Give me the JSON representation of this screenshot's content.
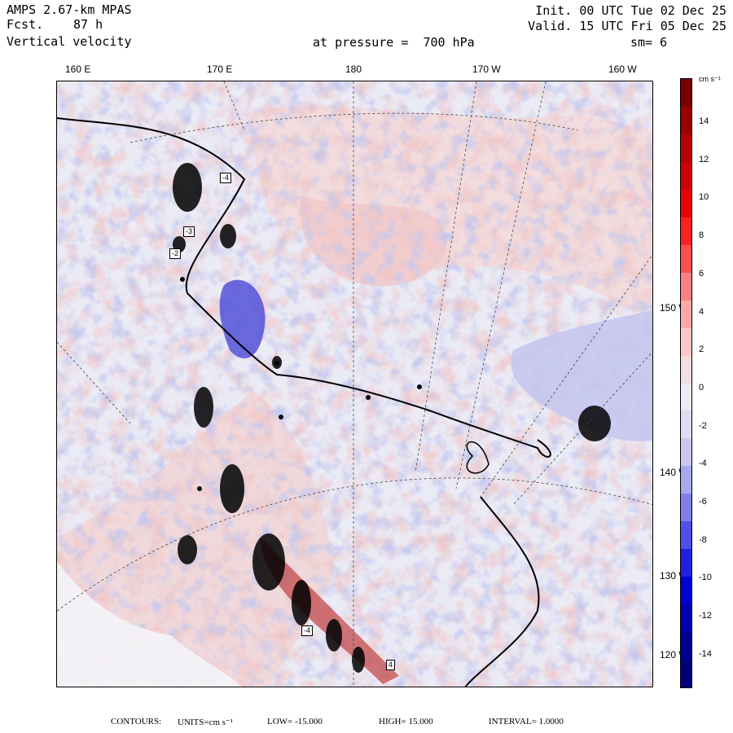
{
  "header": {
    "model": "AMPS 2.67-km MPAS",
    "fcst_label": "Fcst.",
    "fcst_value": "87 h",
    "field": "Vertical velocity",
    "init": "Init. 00 UTC Tue 02 Dec 25",
    "valid": "Valid. 15 UTC Fri 05 Dec 25",
    "pressure": "at pressure =  700 hPa",
    "smooth": "sm= 6"
  },
  "longitudes": [
    "160 E",
    "170 E",
    "180",
    "170 W",
    "160 W"
  ],
  "latitudes": [
    "150 W",
    "140 W",
    "130 W",
    "120 W"
  ],
  "colorbar": {
    "units": "cm s⁻¹",
    "labels": [
      "14",
      "12",
      "10",
      "8",
      "6",
      "4",
      "2",
      "0",
      "-2",
      "-4",
      "-6",
      "-8",
      "-10",
      "-12",
      "-14"
    ],
    "colors": [
      "#7a0000",
      "#990000",
      "#b30000",
      "#cc0000",
      "#e60000",
      "#ff2020",
      "#ff5050",
      "#ff8080",
      "#ffa8a8",
      "#ffc8c8",
      "#f2dede",
      "#ebebf5",
      "#dcdcf2",
      "#c8c8f0",
      "#a8a8ee",
      "#8080ea",
      "#5050e6",
      "#2020e0",
      "#0000d0",
      "#0000b0",
      "#000090",
      "#00007a"
    ]
  },
  "map_labels": [
    "-4",
    "-3",
    "-2",
    "-4",
    "4"
  ],
  "footer": {
    "contours": "CONTOURS:",
    "units_label": "UNITS=cm s⁻¹",
    "low": "LOW= -15.000",
    "high": "HIGH= 15.000",
    "interval": "INTERVAL= 1.0000"
  }
}
